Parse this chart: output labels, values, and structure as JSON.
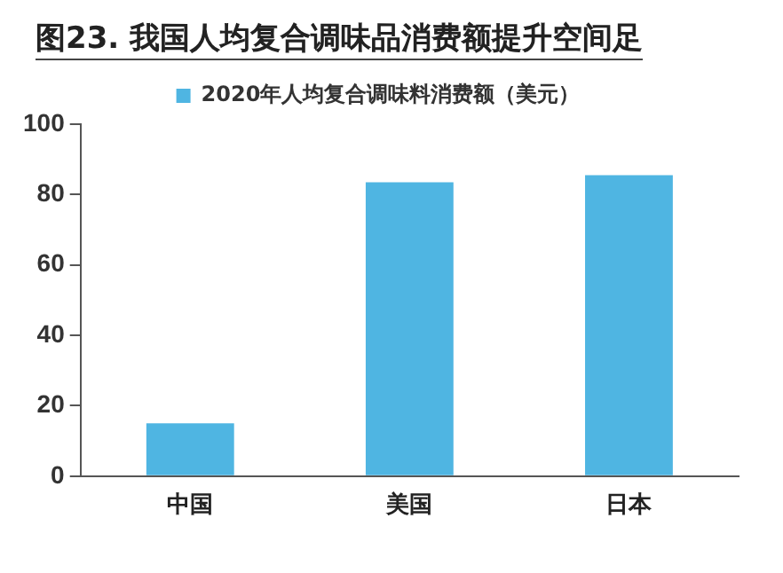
{
  "chart_data": {
    "type": "bar",
    "title": "图23. 我国人均复合调味品消费额提升空间足",
    "categories": [
      "中国",
      "美国",
      "日本"
    ],
    "series": [
      {
        "name": "2020年人均复合调味料消费额（美元）",
        "color": "#4fb5e2",
        "values": [
          15,
          83.5,
          85.5
        ]
      }
    ],
    "ylim": [
      0,
      100
    ],
    "yticks": [
      0,
      20,
      40,
      60,
      80,
      100
    ],
    "grid": false,
    "legend": "top"
  }
}
